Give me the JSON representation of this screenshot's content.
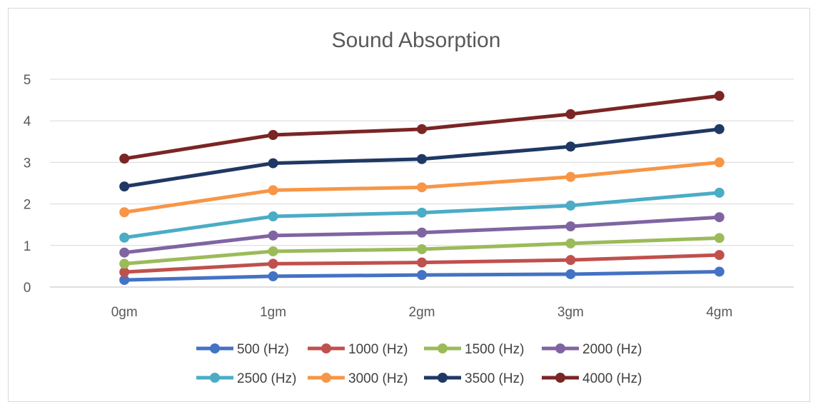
{
  "chart_data": {
    "type": "line",
    "title": "Sound Absorption",
    "xlabel": "",
    "ylabel": "",
    "categories": [
      "0gm",
      "1gm",
      "2gm",
      "3gm",
      "4gm"
    ],
    "y_ticks": [
      "0",
      "1",
      "2",
      "3",
      "4",
      "5"
    ],
    "ylim": [
      0,
      5
    ],
    "grid": true,
    "legend_position": "bottom",
    "series": [
      {
        "name": "500 (Hz)",
        "color": "#4472C4",
        "values": [
          0.17,
          0.26,
          0.29,
          0.31,
          0.37
        ]
      },
      {
        "name": "1000 (Hz)",
        "color": "#C0504D",
        "values": [
          0.36,
          0.56,
          0.59,
          0.65,
          0.77
        ]
      },
      {
        "name": "1500 (Hz)",
        "color": "#9BBB59",
        "values": [
          0.56,
          0.86,
          0.91,
          1.05,
          1.18
        ]
      },
      {
        "name": "2000 (Hz)",
        "color": "#8064A2",
        "values": [
          0.83,
          1.24,
          1.31,
          1.46,
          1.68
        ]
      },
      {
        "name": "2500 (Hz)",
        "color": "#4BACC6",
        "values": [
          1.19,
          1.7,
          1.79,
          1.96,
          2.27
        ]
      },
      {
        "name": "3000 (Hz)",
        "color": "#F79646",
        "values": [
          1.8,
          2.33,
          2.4,
          2.65,
          3.0
        ]
      },
      {
        "name": "3500 (Hz)",
        "color": "#1F3864",
        "values": [
          2.42,
          2.98,
          3.08,
          3.38,
          3.8
        ]
      },
      {
        "name": "4000 (Hz)",
        "color": "#7B2525",
        "values": [
          3.09,
          3.66,
          3.8,
          4.16,
          4.6
        ]
      }
    ]
  }
}
